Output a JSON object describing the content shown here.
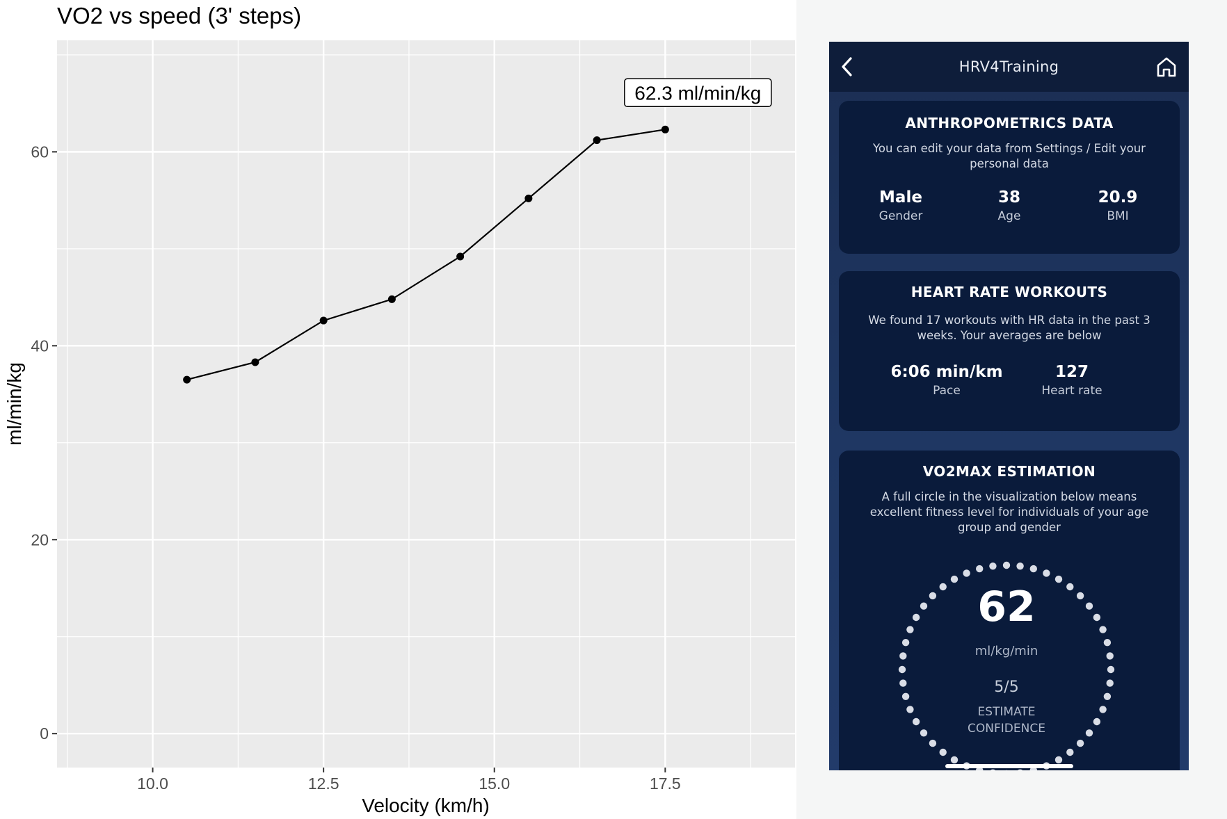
{
  "chart_data": {
    "type": "line",
    "title": "VO2 vs speed (3' steps)",
    "xlabel": "Velocity (km/h)",
    "ylabel": "ml/min/kg",
    "xlim": [
      8.6,
      19.4
    ],
    "ylim": [
      -3.5,
      71.5
    ],
    "x_ticks": [
      10.0,
      12.5,
      15.0,
      17.5
    ],
    "x_tick_labels": [
      "10.0",
      "12.5",
      "15.0",
      "17.5"
    ],
    "y_ticks": [
      0,
      20,
      40,
      60
    ],
    "y_tick_labels": [
      "0",
      "20",
      "40",
      "60"
    ],
    "grid": true,
    "x": [
      10.5,
      11.5,
      12.5,
      13.5,
      14.5,
      15.5,
      16.5,
      17.5
    ],
    "y": [
      36.5,
      38.3,
      42.6,
      44.8,
      49.2,
      55.2,
      61.2,
      62.3
    ],
    "annotation": {
      "text": "62.3 ml/min/kg",
      "x": 17.5,
      "y": 62.3
    },
    "colors": {
      "panel": "#ebebeb",
      "grid": "#ffffff",
      "line": "#000000",
      "point": "#000000"
    }
  },
  "phone": {
    "header": {
      "title": "HRV4Training",
      "back_icon": "chevron-left-icon",
      "home_icon": "home-icon"
    },
    "anthropometrics": {
      "title": "ANTHROPOMETRICS DATA",
      "description": "You can edit your data from Settings / Edit your personal data",
      "stats": [
        {
          "value": "Male",
          "label": "Gender"
        },
        {
          "value": "38",
          "label": "Age"
        },
        {
          "value": "20.9",
          "label": "BMI"
        }
      ]
    },
    "workouts": {
      "title": "HEART RATE WORKOUTS",
      "description": "We found 17 workouts with HR data in the past 3 weeks. Your averages are below",
      "stats": [
        {
          "value": "6:06 min/km",
          "label": "Pace"
        },
        {
          "value": "127",
          "label": "Heart rate"
        }
      ]
    },
    "vo2max": {
      "title": "VO2MAX ESTIMATION",
      "description": "A full circle in the visualization below means excellent fitness level for individuals of your age group and gender",
      "value": "62",
      "unit": "ml/kg/min",
      "confidence": "5/5",
      "confidence_label": "ESTIMATE\nCONFIDENCE",
      "fill_fraction": 1.0
    },
    "colors": {
      "card": "#0a1b3b",
      "header": "#0e1d3a",
      "background": "#1f3763",
      "dots": "#d9dde6"
    }
  }
}
